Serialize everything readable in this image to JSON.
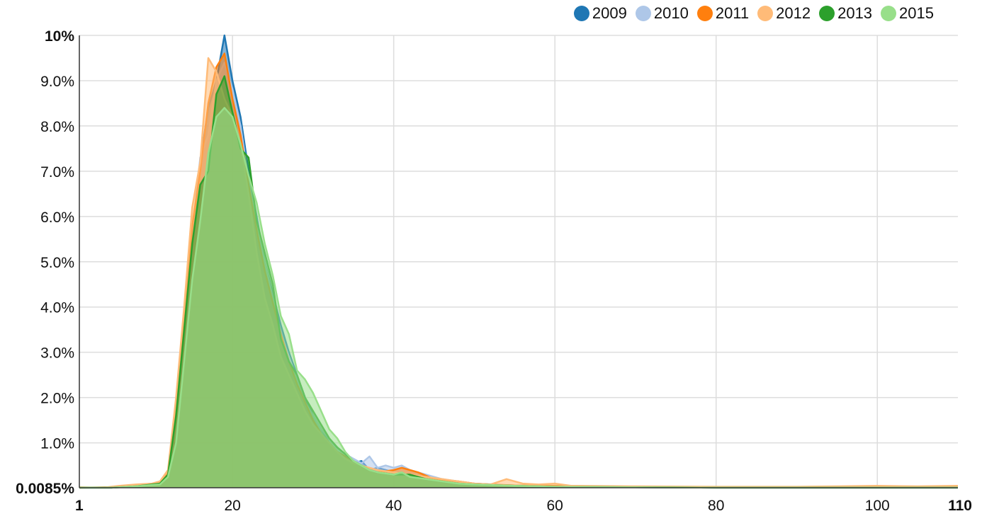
{
  "chart_data": {
    "type": "area",
    "title": "",
    "xlabel": "",
    "ylabel": "",
    "xlim": [
      1,
      110
    ],
    "ylim": [
      0.0085,
      10
    ],
    "y_unit": "%",
    "grid": true,
    "legend_position": "top-right",
    "x_ticks": [
      {
        "value": 1,
        "label": "1",
        "bold": true
      },
      {
        "value": 20,
        "label": "20",
        "bold": false
      },
      {
        "value": 40,
        "label": "40",
        "bold": false
      },
      {
        "value": 60,
        "label": "60",
        "bold": false
      },
      {
        "value": 80,
        "label": "80",
        "bold": false
      },
      {
        "value": 100,
        "label": "100",
        "bold": false
      },
      {
        "value": 110,
        "label": "110",
        "bold": true
      }
    ],
    "y_ticks": [
      {
        "value": 0.0085,
        "label": "0.0085%",
        "bold": true
      },
      {
        "value": 1,
        "label": "1.0%",
        "bold": false
      },
      {
        "value": 2,
        "label": "2.0%",
        "bold": false
      },
      {
        "value": 3,
        "label": "3.0%",
        "bold": false
      },
      {
        "value": 4,
        "label": "4.0%",
        "bold": false
      },
      {
        "value": 5,
        "label": "5.0%",
        "bold": false
      },
      {
        "value": 6,
        "label": "6.0%",
        "bold": false
      },
      {
        "value": 7,
        "label": "7.0%",
        "bold": false
      },
      {
        "value": 8,
        "label": "8.0%",
        "bold": false
      },
      {
        "value": 9,
        "label": "9.0%",
        "bold": false
      },
      {
        "value": 10,
        "label": "10%",
        "bold": true
      }
    ],
    "series": [
      {
        "name": "2009",
        "color": "#1f77b4",
        "points": [
          [
            1,
            0.01
          ],
          [
            5,
            0.01
          ],
          [
            8,
            0.05
          ],
          [
            11,
            0.1
          ],
          [
            12,
            0.3
          ],
          [
            13,
            1.5
          ],
          [
            14,
            3.2
          ],
          [
            15,
            5.5
          ],
          [
            16,
            7.2
          ],
          [
            17,
            8.4
          ],
          [
            18,
            9.0
          ],
          [
            19,
            10.0
          ],
          [
            20,
            9.0
          ],
          [
            21,
            8.2
          ],
          [
            22,
            7.0
          ],
          [
            23,
            6.0
          ],
          [
            24,
            5.0
          ],
          [
            25,
            4.3
          ],
          [
            26,
            3.6
          ],
          [
            27,
            3.0
          ],
          [
            28,
            2.5
          ],
          [
            29,
            2.0
          ],
          [
            30,
            1.6
          ],
          [
            31,
            1.3
          ],
          [
            32,
            1.0
          ],
          [
            33,
            0.8
          ],
          [
            34,
            0.65
          ],
          [
            35,
            0.55
          ],
          [
            36,
            0.6
          ],
          [
            37,
            0.4
          ],
          [
            38,
            0.45
          ],
          [
            39,
            0.4
          ],
          [
            40,
            0.35
          ],
          [
            42,
            0.3
          ],
          [
            44,
            0.25
          ],
          [
            46,
            0.15
          ],
          [
            48,
            0.12
          ],
          [
            50,
            0.1
          ],
          [
            55,
            0.05
          ],
          [
            60,
            0.03
          ],
          [
            70,
            0.02
          ],
          [
            80,
            0.01
          ],
          [
            90,
            0.01
          ],
          [
            100,
            0.01
          ],
          [
            110,
            0.01
          ]
        ]
      },
      {
        "name": "2010",
        "color": "#aec7e8",
        "points": [
          [
            1,
            0.01
          ],
          [
            5,
            0.01
          ],
          [
            8,
            0.05
          ],
          [
            11,
            0.1
          ],
          [
            12,
            0.3
          ],
          [
            13,
            1.4
          ],
          [
            14,
            3.5
          ],
          [
            15,
            5.6
          ],
          [
            16,
            7.3
          ],
          [
            17,
            7.8
          ],
          [
            18,
            9.0
          ],
          [
            19,
            9.4
          ],
          [
            20,
            8.8
          ],
          [
            21,
            8.0
          ],
          [
            22,
            6.8
          ],
          [
            23,
            5.8
          ],
          [
            24,
            5.0
          ],
          [
            25,
            4.2
          ],
          [
            26,
            3.4
          ],
          [
            27,
            2.9
          ],
          [
            28,
            2.4
          ],
          [
            29,
            1.9
          ],
          [
            30,
            1.6
          ],
          [
            31,
            1.3
          ],
          [
            32,
            1.1
          ],
          [
            33,
            0.9
          ],
          [
            34,
            0.75
          ],
          [
            35,
            0.65
          ],
          [
            36,
            0.55
          ],
          [
            37,
            0.7
          ],
          [
            38,
            0.45
          ],
          [
            39,
            0.5
          ],
          [
            40,
            0.45
          ],
          [
            41,
            0.5
          ],
          [
            42,
            0.4
          ],
          [
            44,
            0.3
          ],
          [
            46,
            0.2
          ],
          [
            48,
            0.15
          ],
          [
            50,
            0.1
          ],
          [
            55,
            0.06
          ],
          [
            60,
            0.04
          ],
          [
            70,
            0.02
          ],
          [
            80,
            0.01
          ],
          [
            90,
            0.01
          ],
          [
            100,
            0.01
          ],
          [
            110,
            0.01
          ]
        ]
      },
      {
        "name": "2011",
        "color": "#ff7f0e",
        "points": [
          [
            1,
            0.01
          ],
          [
            5,
            0.02
          ],
          [
            8,
            0.05
          ],
          [
            11,
            0.12
          ],
          [
            12,
            0.35
          ],
          [
            13,
            1.8
          ],
          [
            14,
            3.6
          ],
          [
            15,
            5.8
          ],
          [
            16,
            7.0
          ],
          [
            17,
            8.5
          ],
          [
            18,
            9.3
          ],
          [
            19,
            9.6
          ],
          [
            20,
            8.6
          ],
          [
            21,
            7.8
          ],
          [
            22,
            6.7
          ],
          [
            23,
            5.7
          ],
          [
            24,
            4.8
          ],
          [
            25,
            4.1
          ],
          [
            26,
            3.4
          ],
          [
            27,
            2.8
          ],
          [
            28,
            2.3
          ],
          [
            29,
            1.9
          ],
          [
            30,
            1.5
          ],
          [
            31,
            1.2
          ],
          [
            32,
            1.0
          ],
          [
            33,
            0.8
          ],
          [
            34,
            0.7
          ],
          [
            35,
            0.6
          ],
          [
            36,
            0.5
          ],
          [
            37,
            0.4
          ],
          [
            38,
            0.35
          ],
          [
            40,
            0.4
          ],
          [
            41,
            0.45
          ],
          [
            42,
            0.4
          ],
          [
            43,
            0.35
          ],
          [
            45,
            0.2
          ],
          [
            48,
            0.15
          ],
          [
            50,
            0.1
          ],
          [
            52,
            0.08
          ],
          [
            55,
            0.06
          ],
          [
            60,
            0.05
          ],
          [
            70,
            0.03
          ],
          [
            80,
            0.02
          ],
          [
            90,
            0.02
          ],
          [
            100,
            0.03
          ],
          [
            103,
            0.03
          ],
          [
            110,
            0.02
          ]
        ]
      },
      {
        "name": "2012",
        "color": "#ffbb78",
        "points": [
          [
            1,
            0.02
          ],
          [
            4,
            0.01
          ],
          [
            6,
            0.05
          ],
          [
            8,
            0.08
          ],
          [
            10,
            0.1
          ],
          [
            11,
            0.15
          ],
          [
            12,
            0.4
          ],
          [
            13,
            2.0
          ],
          [
            14,
            4.0
          ],
          [
            15,
            6.2
          ],
          [
            16,
            7.2
          ],
          [
            17,
            9.5
          ],
          [
            18,
            9.2
          ],
          [
            19,
            8.6
          ],
          [
            20,
            8.2
          ],
          [
            21,
            7.6
          ],
          [
            22,
            6.5
          ],
          [
            23,
            5.2
          ],
          [
            24,
            4.2
          ],
          [
            25,
            3.6
          ],
          [
            26,
            2.9
          ],
          [
            27,
            2.5
          ],
          [
            28,
            2.1
          ],
          [
            29,
            1.7
          ],
          [
            30,
            1.4
          ],
          [
            31,
            1.2
          ],
          [
            32,
            1.0
          ],
          [
            33,
            0.8
          ],
          [
            34,
            0.65
          ],
          [
            35,
            0.55
          ],
          [
            36,
            0.5
          ],
          [
            37,
            0.45
          ],
          [
            38,
            0.4
          ],
          [
            40,
            0.35
          ],
          [
            42,
            0.3
          ],
          [
            44,
            0.25
          ],
          [
            46,
            0.2
          ],
          [
            48,
            0.15
          ],
          [
            50,
            0.1
          ],
          [
            52,
            0.08
          ],
          [
            54,
            0.2
          ],
          [
            56,
            0.1
          ],
          [
            58,
            0.08
          ],
          [
            60,
            0.1
          ],
          [
            62,
            0.05
          ],
          [
            70,
            0.04
          ],
          [
            80,
            0.03
          ],
          [
            90,
            0.03
          ],
          [
            95,
            0.04
          ],
          [
            100,
            0.05
          ],
          [
            105,
            0.04
          ],
          [
            110,
            0.05
          ]
        ]
      },
      {
        "name": "2013",
        "color": "#2ca02c",
        "points": [
          [
            1,
            0.01
          ],
          [
            5,
            0.01
          ],
          [
            8,
            0.04
          ],
          [
            11,
            0.1
          ],
          [
            12,
            0.3
          ],
          [
            13,
            1.6
          ],
          [
            14,
            3.5
          ],
          [
            15,
            5.4
          ],
          [
            16,
            6.7
          ],
          [
            17,
            7.0
          ],
          [
            18,
            8.7
          ],
          [
            19,
            9.1
          ],
          [
            20,
            8.3
          ],
          [
            21,
            7.5
          ],
          [
            22,
            7.3
          ],
          [
            23,
            5.9
          ],
          [
            24,
            5.2
          ],
          [
            25,
            4.5
          ],
          [
            26,
            3.3
          ],
          [
            27,
            2.8
          ],
          [
            28,
            2.5
          ],
          [
            29,
            2.0
          ],
          [
            30,
            1.7
          ],
          [
            31,
            1.4
          ],
          [
            32,
            1.1
          ],
          [
            33,
            0.9
          ],
          [
            34,
            0.75
          ],
          [
            35,
            0.6
          ],
          [
            36,
            0.5
          ],
          [
            37,
            0.4
          ],
          [
            38,
            0.35
          ],
          [
            40,
            0.3
          ],
          [
            42,
            0.3
          ],
          [
            44,
            0.2
          ],
          [
            46,
            0.15
          ],
          [
            48,
            0.1
          ],
          [
            50,
            0.08
          ],
          [
            55,
            0.05
          ],
          [
            60,
            0.03
          ],
          [
            70,
            0.02
          ],
          [
            80,
            0.01
          ],
          [
            90,
            0.01
          ],
          [
            100,
            0.01
          ],
          [
            110,
            0.01
          ]
        ]
      },
      {
        "name": "2015",
        "color": "#98df8a",
        "points": [
          [
            1,
            0.01
          ],
          [
            5,
            0.01
          ],
          [
            8,
            0.04
          ],
          [
            11,
            0.08
          ],
          [
            12,
            0.25
          ],
          [
            13,
            1.0
          ],
          [
            14,
            2.8
          ],
          [
            15,
            4.6
          ],
          [
            16,
            5.9
          ],
          [
            17,
            7.4
          ],
          [
            18,
            8.2
          ],
          [
            19,
            8.4
          ],
          [
            20,
            8.2
          ],
          [
            21,
            7.6
          ],
          [
            22,
            6.9
          ],
          [
            23,
            6.3
          ],
          [
            24,
            5.4
          ],
          [
            25,
            4.7
          ],
          [
            26,
            3.8
          ],
          [
            27,
            3.4
          ],
          [
            28,
            2.6
          ],
          [
            29,
            2.4
          ],
          [
            30,
            2.1
          ],
          [
            31,
            1.7
          ],
          [
            32,
            1.3
          ],
          [
            33,
            1.1
          ],
          [
            34,
            0.8
          ],
          [
            35,
            0.6
          ],
          [
            36,
            0.5
          ],
          [
            37,
            0.4
          ],
          [
            38,
            0.35
          ],
          [
            40,
            0.3
          ],
          [
            41,
            0.35
          ],
          [
            42,
            0.25
          ],
          [
            44,
            0.2
          ],
          [
            46,
            0.15
          ],
          [
            48,
            0.1
          ],
          [
            50,
            0.08
          ],
          [
            55,
            0.05
          ],
          [
            60,
            0.03
          ],
          [
            70,
            0.02
          ],
          [
            80,
            0.01
          ],
          [
            90,
            0.01
          ],
          [
            100,
            0.01
          ],
          [
            110,
            0.01
          ]
        ]
      }
    ]
  }
}
